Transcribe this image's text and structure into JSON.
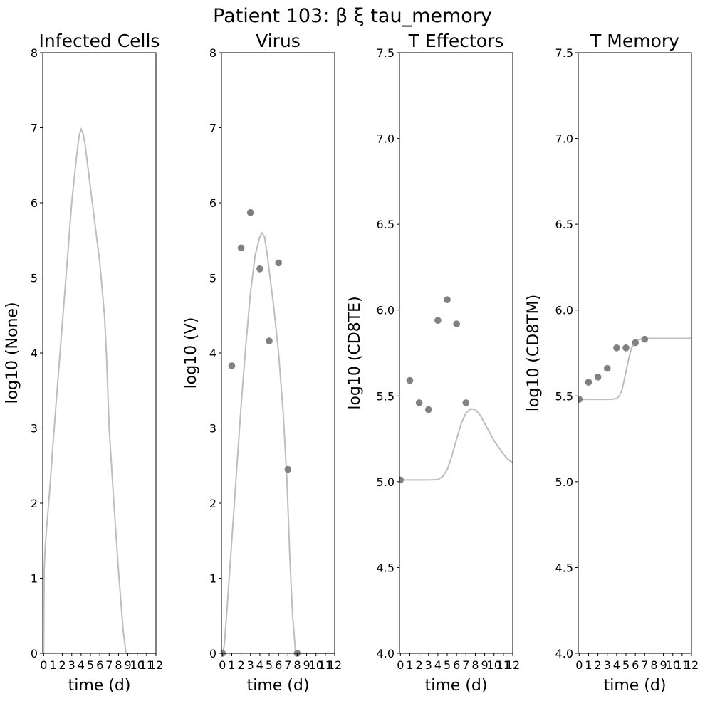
{
  "suptitle": "Patient 103: β ξ tau_memory",
  "colors": {
    "model_line": "#bdbdbd",
    "data_point": "#808080",
    "axes": "#000000"
  },
  "chart_data": [
    {
      "type": "line",
      "title": "Infected Cells",
      "xlabel": "time (d)",
      "ylabel": "log10 (None)",
      "xlim": [
        -0.1,
        12
      ],
      "ylim": [
        0,
        8
      ],
      "xticks": [
        0,
        1,
        2,
        3,
        4,
        5,
        6,
        7,
        8,
        9,
        10,
        11,
        12
      ],
      "xtick_labels": [
        "0",
        "1",
        "2",
        "3",
        "4",
        "5",
        "6",
        "7",
        "8",
        "9",
        "10",
        "11",
        "12"
      ],
      "yticks": [
        0,
        1,
        2,
        3,
        4,
        5,
        6,
        7,
        8
      ],
      "ytick_labels": [
        "0",
        "1",
        "2",
        "3",
        "4",
        "5",
        "6",
        "7",
        "8"
      ],
      "series": [
        {
          "kind": "line",
          "x": [
            0,
            0.05,
            0.15,
            0.3,
            0.6,
            1,
            1.5,
            2,
            2.5,
            3,
            3.5,
            3.8,
            4,
            4.2,
            4.4,
            4.7,
            5,
            5.5,
            6,
            6.5,
            6.7,
            7,
            7.5,
            8,
            8.5,
            8.8,
            8.9,
            9,
            12
          ],
          "y": [
            0,
            1.1,
            1.4,
            1.65,
            2.1,
            2.8,
            3.6,
            4.4,
            5.2,
            6.0,
            6.6,
            6.9,
            6.98,
            6.93,
            6.8,
            6.5,
            6.2,
            5.7,
            5.2,
            4.5,
            4.0,
            3.0,
            2.0,
            1.1,
            0.3,
            0,
            0,
            0,
            0
          ]
        }
      ]
    },
    {
      "type": "scatter",
      "title": "Virus",
      "xlabel": "time (d)",
      "ylabel": "log10 (V)",
      "xlim": [
        -0.1,
        12
      ],
      "ylim": [
        0,
        8
      ],
      "xticks": [
        0,
        1,
        2,
        3,
        4,
        5,
        6,
        7,
        8,
        9,
        10,
        11,
        12
      ],
      "xtick_labels": [
        "0",
        "1",
        "2",
        "3",
        "4",
        "5",
        "6",
        "7",
        "8",
        "9",
        "10",
        "11",
        "12"
      ],
      "yticks": [
        0,
        1,
        2,
        3,
        4,
        5,
        6,
        7,
        8
      ],
      "ytick_labels": [
        "0",
        "1",
        "2",
        "3",
        "4",
        "5",
        "6",
        "7",
        "8"
      ],
      "series": [
        {
          "kind": "line",
          "x": [
            0,
            0.2,
            0.5,
            1,
            1.5,
            2,
            2.5,
            3,
            3.5,
            4,
            4.2,
            4.5,
            4.8,
            5,
            5.5,
            6,
            6.5,
            6.9,
            7.2,
            7.5,
            7.8,
            8,
            8.2,
            8.5,
            12
          ],
          "y": [
            0,
            0.1,
            0.6,
            1.5,
            2.4,
            3.3,
            4.1,
            4.8,
            5.3,
            5.55,
            5.6,
            5.55,
            5.3,
            5.1,
            4.6,
            4.0,
            3.2,
            2.3,
            1.3,
            0.5,
            0.05,
            0,
            0,
            0,
            0
          ]
        },
        {
          "kind": "scatter",
          "x": [
            0,
            1,
            2,
            3,
            4,
            5,
            6,
            7,
            8
          ],
          "y": [
            0,
            3.83,
            5.4,
            5.87,
            5.12,
            4.16,
            5.2,
            2.45,
            0
          ]
        }
      ]
    },
    {
      "type": "scatter",
      "title": "T Effectors",
      "xlabel": "time (d)",
      "ylabel": "log10 (CD8TE)",
      "xlim": [
        -0.1,
        12
      ],
      "ylim": [
        4.0,
        7.5
      ],
      "xticks": [
        0,
        1,
        2,
        3,
        4,
        5,
        6,
        7,
        8,
        9,
        10,
        11,
        12
      ],
      "xtick_labels": [
        "0",
        "1",
        "2",
        "3",
        "4",
        "5",
        "6",
        "7",
        "8",
        "9",
        "10",
        "11",
        "12"
      ],
      "yticks": [
        4.0,
        4.5,
        5.0,
        5.5,
        6.0,
        6.5,
        7.0,
        7.5
      ],
      "ytick_labels": [
        "4.0",
        "4.5",
        "5.0",
        "5.5",
        "6.0",
        "6.5",
        "7.0",
        "7.5"
      ],
      "series": [
        {
          "kind": "line",
          "x": [
            0,
            1,
            2,
            3,
            4,
            4.5,
            5,
            5.5,
            6,
            6.5,
            7,
            7.5,
            8,
            8.5,
            9,
            9.5,
            10,
            10.5,
            11,
            11.5,
            12
          ],
          "y": [
            5.01,
            5.01,
            5.01,
            5.01,
            5.012,
            5.03,
            5.07,
            5.15,
            5.25,
            5.34,
            5.4,
            5.425,
            5.42,
            5.39,
            5.34,
            5.29,
            5.24,
            5.2,
            5.16,
            5.13,
            5.11
          ]
        },
        {
          "kind": "scatter",
          "x": [
            0,
            1,
            2,
            3,
            4,
            5,
            6,
            7
          ],
          "y": [
            5.01,
            5.59,
            5.46,
            5.42,
            5.94,
            6.06,
            5.92,
            5.46
          ]
        }
      ]
    },
    {
      "type": "scatter",
      "title": "T Memory",
      "xlabel": "time (d)",
      "ylabel": "log10 (CD8TM)",
      "xlim": [
        -0.1,
        12
      ],
      "ylim": [
        4.0,
        7.5
      ],
      "xticks": [
        0,
        1,
        2,
        3,
        4,
        5,
        6,
        7,
        8,
        9,
        10,
        11,
        12
      ],
      "xtick_labels": [
        "0",
        "1",
        "2",
        "3",
        "4",
        "5",
        "6",
        "7",
        "8",
        "9",
        "10",
        "11",
        "12"
      ],
      "yticks": [
        4.0,
        4.5,
        5.0,
        5.5,
        6.0,
        6.5,
        7.0,
        7.5
      ],
      "ytick_labels": [
        "4.0",
        "4.5",
        "5.0",
        "5.5",
        "6.0",
        "6.5",
        "7.0",
        "7.5"
      ],
      "series": [
        {
          "kind": "line",
          "x": [
            0,
            1,
            2,
            3,
            3.5,
            4,
            4.3,
            4.6,
            5,
            5.3,
            5.6,
            6,
            6.5,
            7,
            8,
            9,
            10,
            11,
            12
          ],
          "y": [
            5.48,
            5.48,
            5.48,
            5.48,
            5.48,
            5.485,
            5.5,
            5.54,
            5.64,
            5.72,
            5.78,
            5.815,
            5.83,
            5.835,
            5.835,
            5.835,
            5.835,
            5.835,
            5.835
          ]
        },
        {
          "kind": "scatter",
          "x": [
            0,
            1,
            2,
            3,
            4,
            5,
            6,
            7
          ],
          "y": [
            5.48,
            5.58,
            5.61,
            5.66,
            5.78,
            5.78,
            5.81,
            5.83
          ]
        }
      ]
    }
  ]
}
